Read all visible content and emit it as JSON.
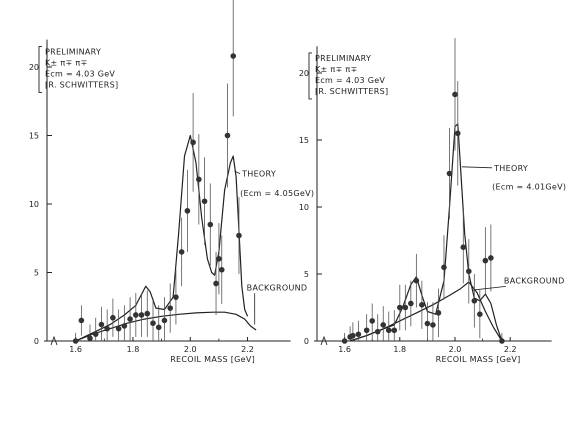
{
  "chart_data": [
    {
      "type": "scatter",
      "xlabel": "RECOIL MASS",
      "xunit": "[GeV]",
      "xlim": [
        1.5,
        2.35
      ],
      "ylim": [
        0,
        22
      ],
      "x_ticks": [
        "1.6",
        "1.8",
        "2.0",
        "2.2"
      ],
      "y_ticks": [
        "0",
        "5",
        "10",
        "15",
        "20"
      ],
      "legend_lines": [
        "PRELIMINARY",
        "K± π∓ π∓",
        "Ecm = 4.03 GeV",
        "[R. SCHWITTERS]"
      ],
      "annotations": [
        {
          "text": "THEORY",
          "x": 2.16,
          "y": 12.0
        },
        {
          "text": "(Ecm = 4.05GeV)",
          "x": 2.16,
          "y": 10.6
        },
        {
          "text": "BACKGROUND",
          "x": 2.19,
          "y": 3.7
        }
      ],
      "points": [
        {
          "x": 1.6,
          "y": 0.0,
          "err": 0.6
        },
        {
          "x": 1.62,
          "y": 1.5,
          "err": 1.1
        },
        {
          "x": 1.65,
          "y": 0.2,
          "err": 1.0
        },
        {
          "x": 1.67,
          "y": 0.5,
          "err": 1.2
        },
        {
          "x": 1.69,
          "y": 1.2,
          "err": 1.3
        },
        {
          "x": 1.71,
          "y": 0.9,
          "err": 1.4
        },
        {
          "x": 1.73,
          "y": 1.7,
          "err": 1.4
        },
        {
          "x": 1.75,
          "y": 0.9,
          "err": 1.4
        },
        {
          "x": 1.77,
          "y": 1.1,
          "err": 1.5
        },
        {
          "x": 1.79,
          "y": 1.6,
          "err": 1.6
        },
        {
          "x": 1.81,
          "y": 1.9,
          "err": 1.6
        },
        {
          "x": 1.83,
          "y": 1.9,
          "err": 1.6
        },
        {
          "x": 1.85,
          "y": 2.0,
          "err": 1.7
        },
        {
          "x": 1.87,
          "y": 1.3,
          "err": 1.6
        },
        {
          "x": 1.89,
          "y": 1.0,
          "err": 1.6
        },
        {
          "x": 1.91,
          "y": 1.5,
          "err": 1.7
        },
        {
          "x": 1.93,
          "y": 2.4,
          "err": 1.8
        },
        {
          "x": 1.95,
          "y": 3.2,
          "err": 2.0
        },
        {
          "x": 1.97,
          "y": 6.5,
          "err": 2.5
        },
        {
          "x": 1.99,
          "y": 9.5,
          "err": 3.0
        },
        {
          "x": 2.01,
          "y": 14.5,
          "err": 3.6
        },
        {
          "x": 2.03,
          "y": 11.8,
          "err": 3.3
        },
        {
          "x": 2.05,
          "y": 10.2,
          "err": 3.2
        },
        {
          "x": 2.07,
          "y": 8.5,
          "err": 3.0
        },
        {
          "x": 2.09,
          "y": 4.2,
          "err": 2.3
        },
        {
          "x": 2.1,
          "y": 6.0,
          "err": 2.6
        },
        {
          "x": 2.11,
          "y": 5.2,
          "err": 2.5
        },
        {
          "x": 2.13,
          "y": 15.0,
          "err": 3.8
        },
        {
          "x": 2.15,
          "y": 20.8,
          "err": 4.4
        },
        {
          "x": 2.17,
          "y": 7.7,
          "err": 2.8
        }
      ],
      "series": [
        {
          "name": "THEORY",
          "x": [
            1.6,
            1.66,
            1.72,
            1.77,
            1.81,
            1.83,
            1.845,
            1.86,
            1.88,
            1.91,
            1.94,
            1.96,
            1.98,
            2.0,
            2.02,
            2.04,
            2.06,
            2.075,
            2.085,
            2.1,
            2.12,
            2.14,
            2.15,
            2.16,
            2.17,
            2.18,
            2.19,
            2.2
          ],
          "y": [
            0.0,
            0.6,
            1.2,
            1.9,
            2.6,
            3.4,
            4.0,
            3.6,
            2.4,
            2.3,
            3.2,
            8.0,
            13.5,
            15.0,
            13.0,
            9.0,
            6.0,
            5.0,
            4.8,
            6.5,
            11.0,
            13.0,
            13.5,
            12.0,
            8.0,
            4.0,
            2.3,
            1.8
          ]
        },
        {
          "name": "BACKGROUND",
          "x": [
            1.6,
            1.66,
            1.72,
            1.78,
            1.84,
            1.9,
            1.96,
            2.02,
            2.08,
            2.12,
            2.16,
            2.19,
            2.21,
            2.23
          ],
          "y": [
            0.0,
            0.5,
            0.9,
            1.3,
            1.6,
            1.8,
            1.95,
            2.05,
            2.1,
            2.1,
            1.95,
            1.6,
            1.1,
            0.8
          ]
        }
      ]
    },
    {
      "type": "scatter",
      "xlabel": "RECOIL MASS",
      "xunit": "[GeV]",
      "xlim": [
        1.5,
        2.35
      ],
      "ylim": [
        0,
        22
      ],
      "x_ticks": [
        "1.6",
        "1.8",
        "2.0",
        "2.2"
      ],
      "y_ticks": [
        "0",
        "5",
        "10",
        "15",
        "20"
      ],
      "legend_lines": [
        "PRELIMINARY",
        "K± π∓ π∓",
        "Ecm = 4.03 GeV",
        "[R. SCHWITTERS]"
      ],
      "annotations": [
        {
          "text": "THEORY",
          "x": 2.12,
          "y": 12.7
        },
        {
          "text": "(Ecm = 4.01GeV)",
          "x": 2.12,
          "y": 11.3
        },
        {
          "text": "BACKGROUND",
          "x": 2.17,
          "y": 4.3
        }
      ],
      "points": [
        {
          "x": 1.6,
          "y": 0.0,
          "err": 0.6
        },
        {
          "x": 1.62,
          "y": 0.3,
          "err": 0.8
        },
        {
          "x": 1.63,
          "y": 0.4,
          "err": 1.0
        },
        {
          "x": 1.65,
          "y": 0.5,
          "err": 1.0
        },
        {
          "x": 1.68,
          "y": 0.8,
          "err": 1.2
        },
        {
          "x": 1.7,
          "y": 1.5,
          "err": 1.3
        },
        {
          "x": 1.72,
          "y": 0.7,
          "err": 1.3
        },
        {
          "x": 1.74,
          "y": 1.2,
          "err": 1.4
        },
        {
          "x": 1.76,
          "y": 0.8,
          "err": 1.4
        },
        {
          "x": 1.78,
          "y": 0.8,
          "err": 1.5
        },
        {
          "x": 1.8,
          "y": 2.5,
          "err": 1.7
        },
        {
          "x": 1.82,
          "y": 2.5,
          "err": 1.7
        },
        {
          "x": 1.84,
          "y": 2.8,
          "err": 1.7
        },
        {
          "x": 1.86,
          "y": 4.5,
          "err": 2.0
        },
        {
          "x": 1.88,
          "y": 2.7,
          "err": 1.8
        },
        {
          "x": 1.9,
          "y": 1.3,
          "err": 1.6
        },
        {
          "x": 1.92,
          "y": 1.2,
          "err": 1.7
        },
        {
          "x": 1.94,
          "y": 2.1,
          "err": 1.8
        },
        {
          "x": 1.96,
          "y": 5.5,
          "err": 2.4
        },
        {
          "x": 1.98,
          "y": 12.5,
          "err": 3.4
        },
        {
          "x": 2.0,
          "y": 18.4,
          "err": 4.2
        },
        {
          "x": 2.01,
          "y": 15.5,
          "err": 3.9
        },
        {
          "x": 2.03,
          "y": 7.0,
          "err": 2.7
        },
        {
          "x": 2.05,
          "y": 5.2,
          "err": 2.4
        },
        {
          "x": 2.07,
          "y": 3.0,
          "err": 2.0
        },
        {
          "x": 2.09,
          "y": 2.0,
          "err": 1.8
        },
        {
          "x": 2.11,
          "y": 6.0,
          "err": 2.5
        },
        {
          "x": 2.13,
          "y": 6.2,
          "err": 2.5
        },
        {
          "x": 2.17,
          "y": 0.0,
          "err": 0.6
        }
      ],
      "series": [
        {
          "name": "THEORY",
          "x": [
            1.62,
            1.68,
            1.74,
            1.78,
            1.81,
            1.84,
            1.86,
            1.88,
            1.9,
            1.93,
            1.96,
            1.98,
            2.0,
            2.01,
            2.02,
            2.035,
            2.05,
            2.07,
            2.09,
            2.11,
            2.13,
            2.15,
            2.17
          ],
          "y": [
            0.0,
            0.4,
            0.9,
            1.2,
            2.5,
            4.2,
            4.8,
            3.4,
            2.2,
            2.0,
            4.5,
            10.0,
            16.0,
            16.2,
            13.0,
            8.0,
            5.0,
            3.2,
            3.0,
            3.5,
            2.8,
            1.2,
            0.0
          ]
        },
        {
          "name": "BACKGROUND",
          "x": [
            1.62,
            1.68,
            1.74,
            1.8,
            1.86,
            1.92,
            1.98,
            2.02,
            2.05,
            2.08,
            2.11,
            2.14,
            2.17
          ],
          "y": [
            0.0,
            0.4,
            0.9,
            1.5,
            2.1,
            2.7,
            3.4,
            3.9,
            4.4,
            3.6,
            2.2,
            1.0,
            0.0
          ]
        }
      ]
    }
  ]
}
